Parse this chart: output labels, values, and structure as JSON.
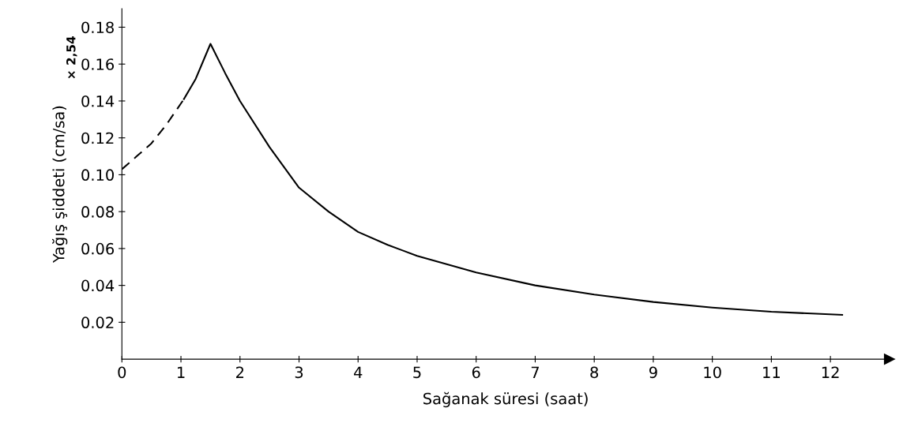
{
  "chart_data": {
    "type": "line",
    "xlabel": "Sağanak süresi (saat)",
    "ylabel": "Yağış şiddeti (cm/sa)",
    "annotations": [
      "× 2,54"
    ],
    "xlim": [
      0,
      13
    ],
    "xticks": [
      0,
      1,
      2,
      3,
      4,
      5,
      6,
      7,
      8,
      9,
      10,
      11,
      12
    ],
    "ylim": [
      0,
      0.19
    ],
    "yticks": [
      0.02,
      0.04,
      0.06,
      0.08,
      {
        "value": 0.1,
        "label": "0.10"
      },
      0.12,
      0.14,
      0.16,
      0.18
    ],
    "grid": false,
    "marker": "none",
    "series": [
      {
        "color": "#000000",
        "line_style": "dashed",
        "x": [
          0,
          0.25,
          0.5,
          0.75,
          1.05
        ],
        "values": [
          0.103,
          0.11,
          0.117,
          0.127,
          0.141
        ]
      },
      {
        "color": "#000000",
        "line_style": "solid",
        "x": [
          1.05,
          1.25,
          1.5,
          1.75,
          2,
          2.5,
          3,
          3.5,
          4,
          4.5,
          5,
          6,
          7,
          8,
          9,
          10,
          11,
          12.2
        ],
        "values": [
          0.141,
          0.152,
          0.171,
          0.155,
          0.14,
          0.115,
          0.093,
          0.08,
          0.069,
          0.062,
          0.056,
          0.047,
          0.04,
          0.035,
          0.031,
          0.028,
          0.0257,
          0.024
        ]
      }
    ]
  }
}
